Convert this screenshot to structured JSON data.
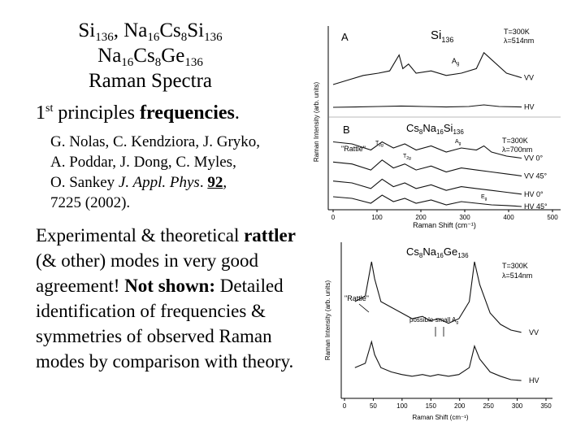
{
  "title": {
    "line1": [
      "Si",
      "136",
      ", Na",
      "16",
      "Cs",
      "8",
      "Si",
      "136"
    ],
    "line2": [
      "Na",
      "16",
      "Cs",
      "8",
      "Ge",
      "136"
    ],
    "line3": "Raman Spectra"
  },
  "principles": {
    "prefix": "1",
    "sup": "st",
    "mid": " principles ",
    "bold": "frequencies",
    "end": "."
  },
  "citation": {
    "line1": "G. Nolas, C. Kendziora, J. Gryko,",
    "line2": "A. Poddar, J. Dong, C. Myles,",
    "l3_a": "O. Sankey ",
    "l3_journal": "J. Appl. Phys",
    "l3_b": ". ",
    "l3_vol": "92",
    "l3_c": ",",
    "line4": "7225 (2002)."
  },
  "body": {
    "t1": "Experimental & theoretical ",
    "bold1": "rattler",
    "t2": " (& other) modes in very good agreement! ",
    "bold2": "Not shown:",
    "t3": " Detailed  identification of frequencies & symmetries of observed Raman modes by comparison with theory."
  },
  "chart_data": [
    {
      "type": "line",
      "xlabel": "Raman Shift (cm⁻¹)",
      "ylabel": "Raman Intensity (arb. units)",
      "xlim": [
        0,
        500
      ],
      "xticks": [
        0,
        100,
        200,
        300,
        400,
        500
      ],
      "panels": [
        {
          "id": "A",
          "label": "A",
          "compound": {
            "main": "Si",
            "sub": "136"
          },
          "conditions": [
            "T=300K",
            "λ=514nm"
          ],
          "annotations": [
            "A",
            "g"
          ],
          "series": [
            {
              "name": "VV",
              "x": [
                0,
                40,
                80,
                120,
                150,
                175,
                185,
                200,
                220,
                260,
                300,
                340,
                380,
                400,
                460,
                500
              ],
              "y": [
                0.25,
                0.35,
                0.45,
                0.5,
                0.55,
                0.9,
                0.6,
                0.7,
                0.5,
                0.55,
                0.45,
                0.5,
                0.6,
                0.95,
                0.5,
                0.4
              ]
            },
            {
              "name": "HV",
              "x": [
                0,
                60,
                120,
                180,
                240,
                300,
                360,
                400,
                440,
                500
              ],
              "y": [
                0.1,
                0.12,
                0.15,
                0.18,
                0.15,
                0.12,
                0.15,
                0.25,
                0.15,
                0.12
              ]
            }
          ]
        },
        {
          "id": "B",
          "label": "B",
          "compound": [
            "Cs",
            "8",
            "Na",
            "16",
            "Si",
            "136"
          ],
          "conditions": [
            "T=300K",
            "λ=700nm"
          ],
          "annotations": [
            "\"Rattle\"",
            "T",
            "2g",
            "A",
            "g",
            "T",
            "2g",
            "E",
            "g"
          ],
          "series": [
            {
              "name": "VV 0°",
              "x": [
                0,
                50,
                100,
                130,
                160,
                190,
                220,
                260,
                300,
                340,
                380,
                400,
                420,
                460,
                500
              ],
              "y": [
                0.95,
                0.9,
                0.75,
                0.95,
                0.8,
                0.9,
                0.75,
                0.85,
                0.7,
                0.8,
                0.75,
                0.85,
                0.7,
                0.6,
                0.55
              ]
            },
            {
              "name": "VV 45°",
              "x": [
                0,
                50,
                100,
                130,
                160,
                190,
                220,
                260,
                300,
                340,
                380,
                420,
                460,
                500
              ],
              "y": [
                0.75,
                0.7,
                0.55,
                0.8,
                0.6,
                0.7,
                0.55,
                0.65,
                0.5,
                0.6,
                0.55,
                0.5,
                0.45,
                0.4
              ]
            },
            {
              "name": "HV 0°",
              "x": [
                0,
                50,
                100,
                130,
                160,
                190,
                220,
                260,
                300,
                340,
                380,
                420,
                460,
                500
              ],
              "y": [
                0.55,
                0.5,
                0.35,
                0.6,
                0.4,
                0.5,
                0.35,
                0.45,
                0.3,
                0.4,
                0.35,
                0.3,
                0.25,
                0.2
              ]
            },
            {
              "name": "HV 45°",
              "x": [
                0,
                50,
                100,
                130,
                160,
                190,
                220,
                260,
                300,
                340,
                380,
                420,
                460,
                500
              ],
              "y": [
                0.35,
                0.3,
                0.15,
                0.4,
                0.2,
                0.3,
                0.15,
                0.25,
                0.1,
                0.2,
                0.15,
                0.1,
                0.08,
                0.05
              ]
            }
          ]
        }
      ]
    },
    {
      "type": "line",
      "title": [
        "Cs",
        "8",
        "Na",
        "16",
        "Ge",
        "136"
      ],
      "conditions": [
        "T=300K",
        "λ=514nm"
      ],
      "annotations": [
        "\"Rattle\"",
        "possible small A",
        "g"
      ],
      "xlabel": "Raman Shift (cm⁻¹)",
      "ylabel": "Raman Intensity (arb. units)",
      "xlim": [
        0,
        350
      ],
      "xticks": [
        0,
        50,
        100,
        150,
        200,
        250,
        300,
        350
      ],
      "series": [
        {
          "name": "VV",
          "x": [
            20,
            40,
            52,
            58,
            70,
            90,
            110,
            130,
            150,
            165,
            180,
            200,
            220,
            240,
            250,
            260,
            280,
            300,
            320,
            340
          ],
          "y": [
            0.55,
            0.6,
            0.9,
            0.75,
            0.55,
            0.5,
            0.45,
            0.4,
            0.42,
            0.38,
            0.4,
            0.36,
            0.4,
            0.55,
            0.9,
            0.7,
            0.45,
            0.35,
            0.3,
            0.28
          ]
        },
        {
          "name": "HV",
          "x": [
            20,
            40,
            52,
            58,
            70,
            90,
            110,
            130,
            150,
            165,
            180,
            200,
            220,
            240,
            250,
            260,
            280,
            300,
            320,
            340
          ],
          "y": [
            0.3,
            0.35,
            0.6,
            0.45,
            0.3,
            0.25,
            0.22,
            0.2,
            0.22,
            0.2,
            0.22,
            0.2,
            0.22,
            0.3,
            0.55,
            0.4,
            0.25,
            0.2,
            0.16,
            0.15
          ]
        }
      ]
    }
  ]
}
